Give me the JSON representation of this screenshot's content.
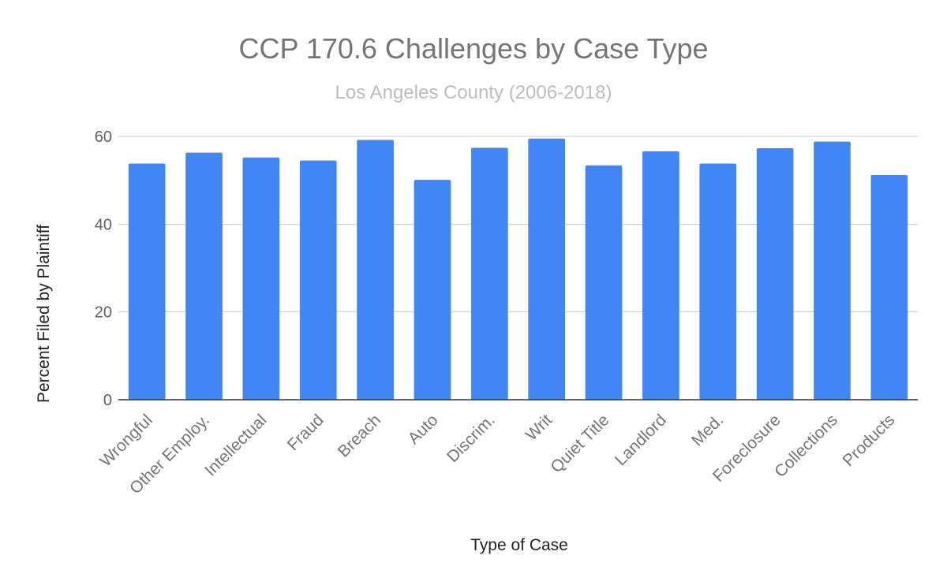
{
  "chart_data": {
    "type": "bar",
    "title": "CCP 170.6 Challenges by Case Type",
    "subtitle": "Los Angeles County (2006-2018)",
    "xlabel": "Type of Case",
    "ylabel": "Percent Filed by Plaintiff",
    "ylim": [
      0,
      60
    ],
    "yticks": [
      0,
      20,
      40,
      60
    ],
    "grid": true,
    "legend": "none",
    "bar_color": "#4285F4",
    "categories": [
      "Wrongful",
      "Other Employ.",
      "Intellectual",
      "Fraud",
      "Breach",
      "Auto",
      "Discrim.",
      "Writ",
      "Quiet Title",
      "Landlord",
      "Med.",
      "Foreclosure",
      "Collections",
      "Products"
    ],
    "values": [
      53.8,
      56.3,
      55.2,
      54.5,
      59.2,
      50.1,
      57.4,
      59.5,
      53.4,
      56.6,
      53.8,
      57.3,
      58.8,
      51.2
    ]
  }
}
